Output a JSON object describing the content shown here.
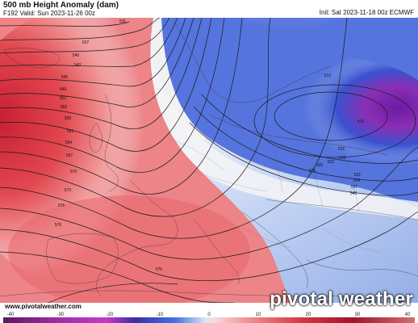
{
  "header": {
    "title": "500 mb Height Anomaly (dam)",
    "valid": "F192 Valid: Sun 2023-11-26 00z",
    "init": "Init: Sat 2023-11-18 00z ECMWF"
  },
  "map": {
    "contour_labels": [
      "531",
      "537",
      "540",
      "543",
      "546",
      "549",
      "552",
      "555",
      "558",
      "561",
      "564",
      "567",
      "570",
      "573",
      "576",
      "576",
      "576",
      "513",
      "513",
      "516",
      "519",
      "522",
      "525",
      "528",
      "531",
      "534",
      "537",
      "540"
    ],
    "anomaly_colors": {
      "strong_positive": "#d42b3a",
      "positive": "#ef7a7e",
      "neutral": "#f5f5f5",
      "negative": "#6e8fe0",
      "strong_negative": "#6b1fa8"
    }
  },
  "footer": {
    "website": "www.pivotalweather.com",
    "brand": "pivotal weather"
  },
  "colorbar": {
    "ticks": [
      "-40",
      "-30",
      "-20",
      "-10",
      "0",
      "10",
      "20",
      "30",
      "40"
    ]
  }
}
